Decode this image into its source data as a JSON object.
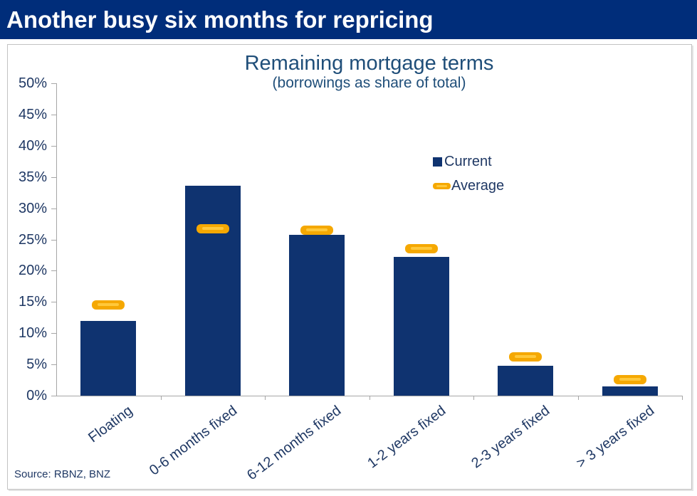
{
  "header": {
    "title": "Another busy six months for repricing"
  },
  "chart": {
    "title": "Remaining mortgage terms",
    "subtitle": "(borrowings as share of total)",
    "source": "Source: RBNZ, BNZ"
  },
  "colors": {
    "header_bg": "#002d7a",
    "bar_navy": "#0f3370",
    "marker_gold": "#f5a802",
    "marker_gold_inner": "#ffc83a",
    "text_navy": "#1f3864",
    "title_blue": "#1f4e79",
    "axis_gray": "#a6a6a6"
  },
  "chart_data": {
    "type": "bar",
    "title": "Remaining mortgage terms",
    "subtitle": "(borrowings as share of total)",
    "categories": [
      "Floating",
      "0-6 months fixed",
      "6-12 months fixed",
      "1-2 years fixed",
      "2-3 years fixed",
      "> 3 years fixed"
    ],
    "series": [
      {
        "name": "Current",
        "type": "bar",
        "values": [
          12.0,
          33.6,
          25.7,
          22.2,
          4.8,
          1.5
        ]
      },
      {
        "name": "Average",
        "type": "dash-marker",
        "values": [
          14.5,
          26.7,
          26.5,
          23.5,
          6.2,
          2.6
        ]
      }
    ],
    "xlabel": "",
    "ylabel": "",
    "ylim": [
      0,
      50
    ],
    "y_tick_step": 5,
    "y_tick_format": "percent",
    "grid": false,
    "legend_position": "upper-right",
    "source": "Source: RBNZ, BNZ"
  }
}
